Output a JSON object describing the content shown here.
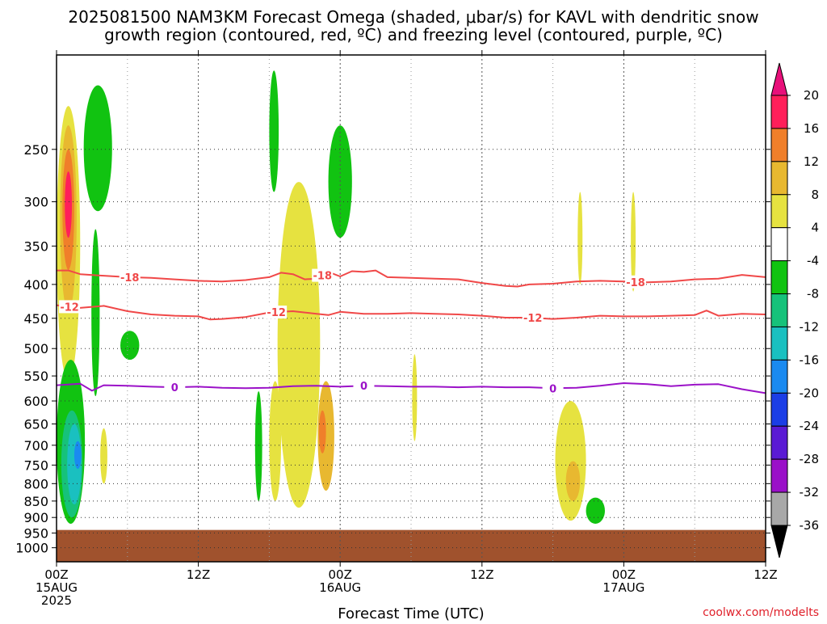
{
  "chart_data": {
    "type": "heatmap",
    "title": "2025081500 NAM3KM Forecast Omega (shaded, μbar/s) for KAVL with dendritic snow growth region (contoured, red, ºC) and freezing level (contoured, purple, ºC)",
    "title_lines": [
      "2025081500 NAM3KM Forecast Omega (shaded, μbar/s) for KAVL with dendritic snow",
      "growth region (contoured, red, ºC) and freezing level (contoured, purple, ºC)"
    ],
    "xlabel": "Forecast Time (UTC)",
    "ylabel": "",
    "footer": "coolwx.com/modelts",
    "x_range_hours": [
      0,
      60
    ],
    "y_range_hpa": [
      1050,
      180
    ],
    "y_scale": "log-pressure",
    "grid": true,
    "x_ticks": [
      {
        "hour": 0,
        "lines": [
          "00Z",
          "15AUG",
          "2025"
        ]
      },
      {
        "hour": 12,
        "lines": [
          "12Z"
        ]
      },
      {
        "hour": 24,
        "lines": [
          "00Z",
          "16AUG"
        ]
      },
      {
        "hour": 36,
        "lines": [
          "12Z"
        ]
      },
      {
        "hour": 48,
        "lines": [
          "00Z",
          "17AUG"
        ]
      },
      {
        "hour": 60,
        "lines": [
          "12Z"
        ]
      }
    ],
    "y_ticks": [
      250,
      300,
      350,
      400,
      450,
      500,
      550,
      600,
      650,
      700,
      750,
      800,
      850,
      900,
      950,
      1000
    ],
    "ground_level_hpa": 940,
    "colorbar": {
      "labels": [
        "20",
        "16",
        "12",
        "8",
        "4",
        "-4",
        "-8",
        "-12",
        "-16",
        "-20",
        "-24",
        "-28",
        "-32",
        "-36"
      ],
      "colors": [
        "#ff1f5a",
        "#f07f2a",
        "#e8b830",
        "#e6e240",
        "#ffffff",
        "#11c311",
        "#16c27a",
        "#1ac0c0",
        "#1a8af0",
        "#1b3ee6",
        "#5a1ad4",
        "#9a10c8",
        "#a8a8a8"
      ],
      "top_color": "#e8107a",
      "bottom_color": "#000000"
    },
    "contours": [
      {
        "label": "-18",
        "color": "#f04848",
        "points": [
          [
            0,
            381
          ],
          [
            1,
            381
          ],
          [
            2,
            386
          ],
          [
            4,
            388
          ],
          [
            6,
            390
          ],
          [
            8,
            391
          ],
          [
            10,
            393
          ],
          [
            12,
            395
          ],
          [
            14,
            396
          ],
          [
            16,
            394
          ],
          [
            18,
            390
          ],
          [
            19,
            384
          ],
          [
            20,
            386
          ],
          [
            21,
            393
          ],
          [
            22,
            392
          ],
          [
            23,
            383
          ],
          [
            24,
            389
          ],
          [
            25,
            382
          ],
          [
            26,
            383
          ],
          [
            27,
            381
          ],
          [
            28,
            390
          ],
          [
            30,
            391
          ],
          [
            32,
            392
          ],
          [
            34,
            393
          ],
          [
            36,
            398
          ],
          [
            38,
            402
          ],
          [
            39,
            403
          ],
          [
            40,
            400
          ],
          [
            42,
            399
          ],
          [
            44,
            396
          ],
          [
            46,
            395
          ],
          [
            48,
            396
          ],
          [
            50,
            397
          ],
          [
            52,
            396
          ],
          [
            54,
            393
          ],
          [
            56,
            392
          ],
          [
            58,
            387
          ],
          [
            60,
            390
          ]
        ],
        "labels_at_hours": [
          6.2,
          22.5,
          49.0
        ]
      },
      {
        "label": "-12",
        "color": "#f04848",
        "points": [
          [
            0,
            430
          ],
          [
            1,
            432
          ],
          [
            2,
            434
          ],
          [
            4,
            431
          ],
          [
            6,
            439
          ],
          [
            8,
            444
          ],
          [
            10,
            446
          ],
          [
            12,
            447
          ],
          [
            13,
            452
          ],
          [
            14,
            451
          ],
          [
            16,
            448
          ],
          [
            18,
            441
          ],
          [
            20,
            439
          ],
          [
            22,
            443
          ],
          [
            23,
            445
          ],
          [
            24,
            440
          ],
          [
            26,
            443
          ],
          [
            28,
            443
          ],
          [
            30,
            442
          ],
          [
            32,
            443
          ],
          [
            34,
            444
          ],
          [
            36,
            446
          ],
          [
            38,
            449
          ],
          [
            40,
            449
          ],
          [
            42,
            451
          ],
          [
            44,
            449
          ],
          [
            46,
            446
          ],
          [
            48,
            447
          ],
          [
            50,
            447
          ],
          [
            52,
            446
          ],
          [
            54,
            445
          ],
          [
            55,
            438
          ],
          [
            56,
            446
          ],
          [
            58,
            443
          ],
          [
            60,
            444
          ]
        ],
        "labels_at_hours": [
          1.1,
          18.6,
          40.3
        ]
      },
      {
        "label": "0",
        "color": "#9b12c8",
        "points": [
          [
            0,
            568
          ],
          [
            2,
            565
          ],
          [
            3,
            579
          ],
          [
            4,
            568
          ],
          [
            6,
            569
          ],
          [
            8,
            571
          ],
          [
            10,
            572
          ],
          [
            12,
            571
          ],
          [
            14,
            573
          ],
          [
            16,
            574
          ],
          [
            18,
            573
          ],
          [
            20,
            570
          ],
          [
            22,
            569
          ],
          [
            24,
            571
          ],
          [
            26,
            569
          ],
          [
            28,
            570
          ],
          [
            30,
            571
          ],
          [
            32,
            571
          ],
          [
            34,
            572
          ],
          [
            36,
            571
          ],
          [
            38,
            572
          ],
          [
            40,
            572
          ],
          [
            42,
            574
          ],
          [
            44,
            573
          ],
          [
            46,
            569
          ],
          [
            48,
            564
          ],
          [
            50,
            566
          ],
          [
            52,
            570
          ],
          [
            54,
            567
          ],
          [
            56,
            566
          ],
          [
            58,
            576
          ],
          [
            60,
            584
          ]
        ],
        "labels_at_hours": [
          10.0,
          26.0,
          42.0
        ]
      }
    ],
    "shaded_regions": [
      {
        "level": "4 to 8",
        "color": "#e6e240",
        "center_hour": 1.0,
        "pressure_range": [
          560,
          215
        ],
        "half_width_hours": 1.0
      },
      {
        "level": "8 to 12",
        "color": "#e8b830",
        "center_hour": 1.0,
        "pressure_range": [
          440,
          230
        ],
        "half_width_hours": 0.7
      },
      {
        "level": "12 to 16",
        "color": "#f07f2a",
        "center_hour": 1.0,
        "pressure_range": [
          380,
          250
        ],
        "half_width_hours": 0.5
      },
      {
        "level": "16 to 20",
        "color": "#ff1f5a",
        "center_hour": 1.0,
        "pressure_range": [
          340,
          270
        ],
        "half_width_hours": 0.3
      },
      {
        "level": "-4 to -8",
        "color": "#11c311",
        "center_hour": 1.2,
        "pressure_range": [
          920,
          520
        ],
        "half_width_hours": 1.2
      },
      {
        "level": "-8 to -12",
        "color": "#16c27a",
        "center_hour": 1.3,
        "pressure_range": [
          900,
          620
        ],
        "half_width_hours": 0.9
      },
      {
        "level": "-12 to -16",
        "color": "#1ac0c0",
        "center_hour": 1.5,
        "pressure_range": [
          860,
          650
        ],
        "half_width_hours": 0.6
      },
      {
        "level": "-16 to -20",
        "color": "#1a8af0",
        "center_hour": 1.8,
        "pressure_range": [
          760,
          690
        ],
        "half_width_hours": 0.3
      },
      {
        "level": "-4 to -8",
        "color": "#11c311",
        "center_hour": 3.3,
        "pressure_range": [
          590,
          330
        ],
        "half_width_hours": 0.35
      },
      {
        "level": "-4 to -8",
        "color": "#11c311",
        "center_hour": 3.5,
        "pressure_range": [
          310,
          200
        ],
        "half_width_hours": 1.2
      },
      {
        "level": "-4 to -8",
        "color": "#11c311",
        "center_hour": 6.2,
        "pressure_range": [
          520,
          470
        ],
        "half_width_hours": 0.8
      },
      {
        "level": "4 to 8",
        "color": "#e6e240",
        "center_hour": 4.0,
        "pressure_range": [
          800,
          660
        ],
        "half_width_hours": 0.3
      },
      {
        "level": "4 to 8",
        "color": "#e6e240",
        "center_hour": 20.5,
        "pressure_range": [
          870,
          280
        ],
        "half_width_hours": 1.8
      },
      {
        "level": "8 to 12",
        "color": "#e8b830",
        "center_hour": 22.8,
        "pressure_range": [
          820,
          560
        ],
        "half_width_hours": 0.7
      },
      {
        "level": "12 to 16",
        "color": "#f07f2a",
        "center_hour": 22.5,
        "pressure_range": [
          720,
          620
        ],
        "half_width_hours": 0.3
      },
      {
        "level": "4 to 8",
        "color": "#e6e240",
        "center_hour": 18.5,
        "pressure_range": [
          850,
          560
        ],
        "half_width_hours": 0.5
      },
      {
        "level": "-4 to -8",
        "color": "#11c311",
        "center_hour": 17.1,
        "pressure_range": [
          850,
          580
        ],
        "half_width_hours": 0.3
      },
      {
        "level": "-4 to -8",
        "color": "#11c311",
        "center_hour": 24.0,
        "pressure_range": [
          340,
          230
        ],
        "half_width_hours": 1.0
      },
      {
        "level": "-4 to -8",
        "color": "#11c311",
        "center_hour": 18.4,
        "pressure_range": [
          290,
          190
        ],
        "half_width_hours": 0.4
      },
      {
        "level": "4 to 8",
        "color": "#e6e240",
        "center_hour": 30.3,
        "pressure_range": [
          690,
          510
        ],
        "half_width_hours": 0.2
      },
      {
        "level": "4 to 8",
        "color": "#e6e240",
        "center_hour": 43.5,
        "pressure_range": [
          910,
          600
        ],
        "half_width_hours": 1.3
      },
      {
        "level": "8 to 12",
        "color": "#e8b830",
        "center_hour": 43.7,
        "pressure_range": [
          850,
          740
        ],
        "half_width_hours": 0.6
      },
      {
        "level": "-4 to -8",
        "color": "#11c311",
        "center_hour": 45.6,
        "pressure_range": [
          920,
          840
        ],
        "half_width_hours": 0.8
      },
      {
        "level": "4 to 8",
        "color": "#e6e240",
        "center_hour": 44.3,
        "pressure_range": [
          400,
          290
        ],
        "half_width_hours": 0.2
      },
      {
        "level": "4 to 8",
        "color": "#e6e240",
        "center_hour": 48.8,
        "pressure_range": [
          410,
          290
        ],
        "half_width_hours": 0.2
      }
    ]
  }
}
